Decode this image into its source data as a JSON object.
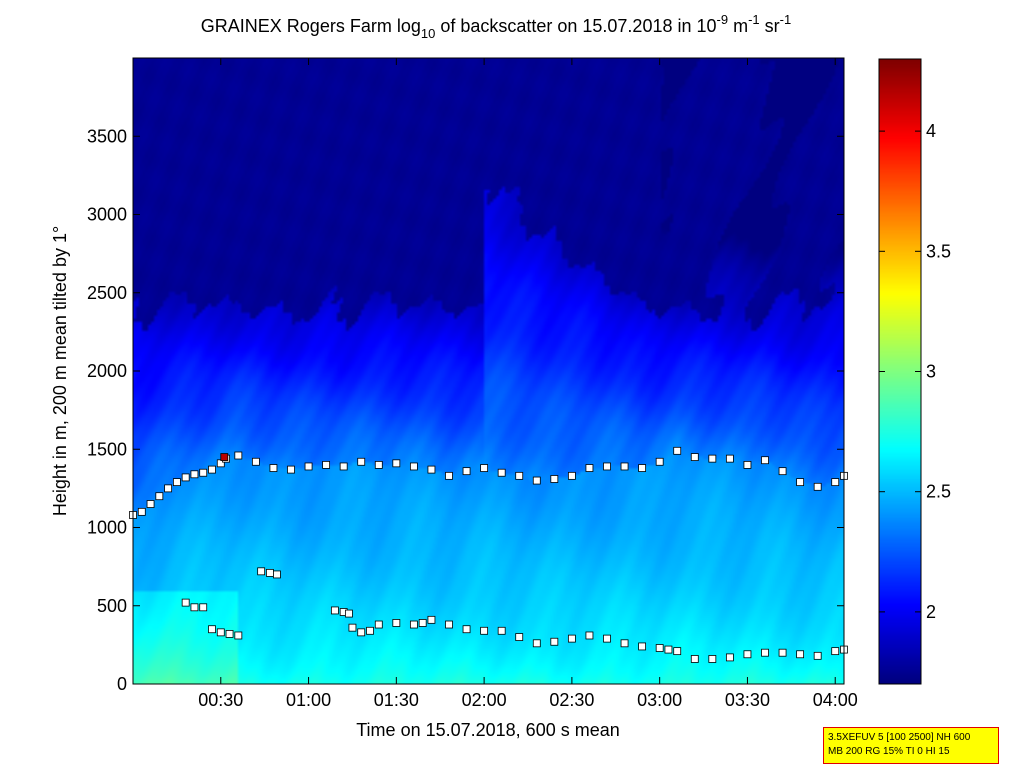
{
  "chart_data": {
    "type": "heatmap",
    "title": {
      "pre": "GRAINEX Rogers Farm log",
      "sub10": "10",
      "mid": " of backscatter on 15.07.2018 in 10",
      "exp1": "-9",
      "m": " m",
      "exp2": "-1",
      "sr": " sr",
      "exp3": "-1"
    },
    "xlabel": "Time on 15.07.2018, 600 s mean",
    "ylabel": "Height in m, 200 m mean tilted by 1°",
    "x_ticks": [
      "00:30",
      "01:00",
      "01:30",
      "02:00",
      "02:30",
      "03:00",
      "03:30",
      "04:00"
    ],
    "x_tick_hours": [
      0.5,
      1.0,
      1.5,
      2.0,
      2.5,
      3.0,
      3.5,
      4.0
    ],
    "xlim_hours": [
      0.0,
      4.05
    ],
    "y_ticks": [
      0,
      500,
      1000,
      1500,
      2000,
      2500,
      3000,
      3500
    ],
    "ylim": [
      0,
      4000
    ],
    "colorbar": {
      "ticks": [
        "2",
        "2.5",
        "3",
        "3.5",
        "4"
      ],
      "tick_values": [
        2.0,
        2.5,
        3.0,
        3.5,
        4.0
      ],
      "range": [
        1.7,
        4.3
      ],
      "colormap": "jet"
    },
    "field_description": {
      "clean_air_top_value": 1.75,
      "mixed_layer_value": 2.55,
      "surface_value": 2.75
    },
    "series": [
      {
        "marker": "square",
        "x_hours": [
          0.0,
          0.05,
          0.1,
          0.15,
          0.2,
          0.25,
          0.3,
          0.35,
          0.4,
          0.45,
          0.5,
          0.53,
          0.6,
          0.7,
          0.8,
          0.9,
          1.0,
          1.1,
          1.2,
          1.3,
          1.4,
          1.5,
          1.6,
          1.7,
          1.8,
          1.9,
          2.0,
          2.1,
          2.2,
          2.3,
          2.4,
          2.5,
          2.6,
          2.7,
          2.8,
          2.9,
          3.0,
          3.1,
          3.2,
          3.3,
          3.4,
          3.5,
          3.6,
          3.7,
          3.8,
          3.9,
          4.0,
          4.05
        ],
        "heights": [
          1080,
          1100,
          1150,
          1200,
          1250,
          1290,
          1320,
          1340,
          1350,
          1370,
          1410,
          1440,
          1460,
          1420,
          1380,
          1370,
          1390,
          1400,
          1390,
          1420,
          1400,
          1410,
          1390,
          1370,
          1330,
          1360,
          1380,
          1350,
          1330,
          1300,
          1310,
          1330,
          1380,
          1390,
          1390,
          1380,
          1420,
          1490,
          1450,
          1440,
          1440,
          1400,
          1430,
          1360,
          1290,
          1260,
          1290,
          1330
        ]
      },
      {
        "marker": "square",
        "x_hours": [
          0.3,
          0.35,
          0.4,
          0.45,
          0.5,
          0.55,
          0.6,
          0.73,
          0.78,
          0.82,
          1.15,
          1.2,
          1.23,
          1.25,
          1.3,
          1.35,
          1.4,
          1.5,
          1.6,
          1.65,
          1.7,
          1.8,
          1.9,
          2.0,
          2.1,
          2.2,
          2.3,
          2.4,
          2.5,
          2.6,
          2.7,
          2.8,
          2.9,
          3.0,
          3.05,
          3.1,
          3.2,
          3.3,
          3.4,
          3.5,
          3.6,
          3.7,
          3.8,
          3.9,
          4.0,
          4.05
        ],
        "heights": [
          520,
          490,
          490,
          350,
          330,
          320,
          310,
          720,
          710,
          700,
          470,
          460,
          450,
          360,
          330,
          340,
          380,
          390,
          380,
          390,
          410,
          380,
          350,
          340,
          340,
          300,
          260,
          270,
          290,
          310,
          290,
          260,
          240,
          230,
          220,
          210,
          160,
          160,
          170,
          190,
          200,
          200,
          190,
          180,
          210,
          220
        ]
      }
    ],
    "highlight_point": {
      "x_hours": 0.52,
      "height": 1450,
      "value": 4.15
    }
  },
  "infobox": {
    "line1": "3.5XEFUV 5 [100 2500] NH 600",
    "line2": "MB 200 RG 15% TI 0 HI 15"
  }
}
